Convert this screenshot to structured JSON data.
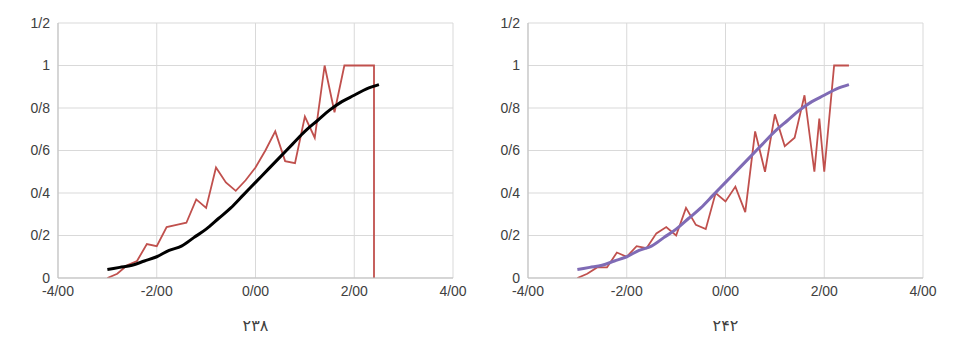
{
  "chart_data": [
    {
      "type": "line",
      "title": "۲۳۸",
      "xlim": [
        -4,
        4
      ],
      "xticks": [
        {
          "value": -4,
          "label": "-4/00"
        },
        {
          "value": -2,
          "label": "-2/00"
        },
        {
          "value": 0,
          "label": "0/00"
        },
        {
          "value": 2,
          "label": "2/00"
        },
        {
          "value": 4,
          "label": "4/00"
        }
      ],
      "ylim": [
        0,
        1.2
      ],
      "yticks": [
        0,
        {
          "value": 0.2,
          "label": "0/2"
        },
        {
          "value": 0.4,
          "label": "0/4"
        },
        {
          "value": 0.6,
          "label": "0/6"
        },
        {
          "value": 0.8,
          "label": "0/8"
        },
        1,
        {
          "value": 1.2,
          "label": "1/2"
        }
      ],
      "grid": true,
      "series": [
        {
          "type": "line",
          "color": "#c0504d",
          "x": [
            -3,
            -2.8,
            -2.6,
            -2.4,
            -2.2,
            -2.0,
            -1.8,
            -1.6,
            -1.4,
            -1.2,
            -1.0,
            -0.8,
            -0.6,
            -0.4,
            -0.2,
            0,
            0.2,
            0.4,
            0.6,
            0.8,
            1.0,
            1.2,
            1.4,
            1.6,
            1.8,
            2.0,
            2.2,
            2.4,
            2.4
          ],
          "values": [
            0,
            0.02,
            0.06,
            0.08,
            0.16,
            0.15,
            0.24,
            0.25,
            0.26,
            0.37,
            0.33,
            0.52,
            0.45,
            0.41,
            0.46,
            0.52,
            0.6,
            0.69,
            0.55,
            0.54,
            0.76,
            0.66,
            1.0,
            0.78,
            1.0,
            1.0,
            1.0,
            1.0,
            0
          ]
        },
        {
          "type": "spline",
          "color": "#000000",
          "x": [
            -3,
            -2.75,
            -2.5,
            -2.25,
            -2,
            -1.75,
            -1.5,
            -1.25,
            -1,
            -0.75,
            -0.5,
            -0.25,
            0,
            0.25,
            0.5,
            0.75,
            1,
            1.25,
            1.5,
            1.75,
            2,
            2.25,
            2.5
          ],
          "values": [
            0.04,
            0.05,
            0.06,
            0.08,
            0.1,
            0.13,
            0.15,
            0.19,
            0.23,
            0.28,
            0.33,
            0.39,
            0.45,
            0.51,
            0.57,
            0.63,
            0.69,
            0.74,
            0.79,
            0.83,
            0.86,
            0.89,
            0.91
          ]
        }
      ]
    },
    {
      "type": "line",
      "title": "۲۴۲",
      "xlim": [
        -4,
        4
      ],
      "xticks": [
        {
          "value": -4,
          "label": "-4/00"
        },
        {
          "value": -2,
          "label": "-2/00"
        },
        {
          "value": 0,
          "label": "0/00"
        },
        {
          "value": 2,
          "label": "2/00"
        },
        {
          "value": 4,
          "label": "4/00"
        }
      ],
      "ylim": [
        0,
        1.2
      ],
      "yticks": [
        0,
        {
          "value": 0.2,
          "label": "0/2"
        },
        {
          "value": 0.4,
          "label": "0/4"
        },
        {
          "value": 0.6,
          "label": "0/6"
        },
        {
          "value": 0.8,
          "label": "0/8"
        },
        1,
        {
          "value": 1.2,
          "label": "1/2"
        }
      ],
      "grid": true,
      "series": [
        {
          "type": "line",
          "color": "#c0504d",
          "x": [
            -3,
            -2.8,
            -2.6,
            -2.4,
            -2.2,
            -2.0,
            -1.8,
            -1.6,
            -1.4,
            -1.2,
            -1.0,
            -0.8,
            -0.6,
            -0.4,
            -0.2,
            0,
            0.2,
            0.4,
            0.6,
            0.8,
            1.0,
            1.2,
            1.4,
            1.6,
            1.8,
            1.9,
            2.0,
            2.2,
            2.5
          ],
          "values": [
            0,
            0.02,
            0.05,
            0.05,
            0.12,
            0.1,
            0.15,
            0.14,
            0.21,
            0.24,
            0.2,
            0.33,
            0.25,
            0.23,
            0.4,
            0.36,
            0.43,
            0.31,
            0.69,
            0.5,
            0.77,
            0.62,
            0.66,
            0.86,
            0.5,
            0.75,
            0.5,
            1.0,
            1.0
          ]
        },
        {
          "type": "spline",
          "color": "#7f6bb5",
          "x": [
            -3,
            -2.75,
            -2.5,
            -2.25,
            -2,
            -1.75,
            -1.5,
            -1.25,
            -1,
            -0.75,
            -0.5,
            -0.25,
            0,
            0.25,
            0.5,
            0.75,
            1,
            1.25,
            1.5,
            1.75,
            2,
            2.25,
            2.5
          ],
          "values": [
            0.04,
            0.05,
            0.06,
            0.08,
            0.1,
            0.13,
            0.15,
            0.19,
            0.23,
            0.28,
            0.33,
            0.39,
            0.45,
            0.51,
            0.57,
            0.63,
            0.69,
            0.74,
            0.79,
            0.83,
            0.86,
            0.89,
            0.91
          ]
        }
      ]
    }
  ]
}
